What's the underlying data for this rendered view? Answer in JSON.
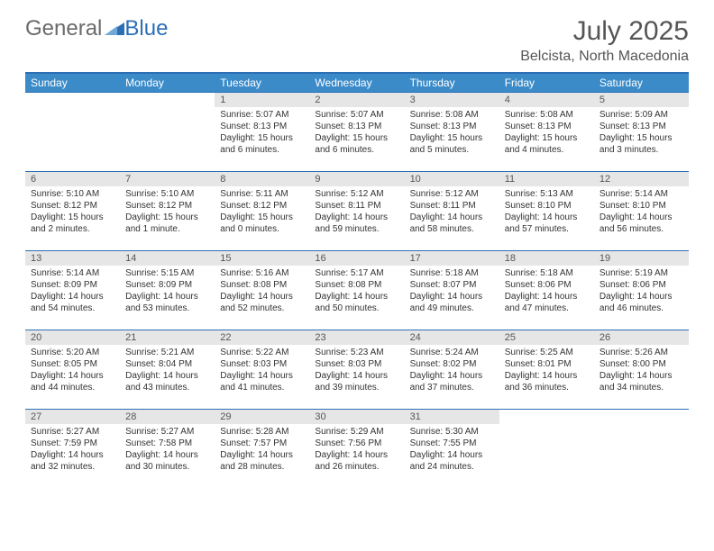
{
  "logo": {
    "part1": "General",
    "part2": "Blue"
  },
  "title": "July 2025",
  "location": "Belcista, North Macedonia",
  "colors": {
    "header_bg": "#3b8bc9",
    "header_border": "#2c6fb5",
    "daynum_bg": "#e6e6e6",
    "text": "#333333",
    "title_text": "#555555"
  },
  "typography": {
    "title_fontsize": 30,
    "location_fontsize": 16,
    "th_fontsize": 12,
    "cell_fontsize": 10
  },
  "weekdays": [
    "Sunday",
    "Monday",
    "Tuesday",
    "Wednesday",
    "Thursday",
    "Friday",
    "Saturday"
  ],
  "weeks": [
    [
      null,
      null,
      {
        "n": "1",
        "sr": "5:07 AM",
        "ss": "8:13 PM",
        "dl": "15 hours and 6 minutes."
      },
      {
        "n": "2",
        "sr": "5:07 AM",
        "ss": "8:13 PM",
        "dl": "15 hours and 6 minutes."
      },
      {
        "n": "3",
        "sr": "5:08 AM",
        "ss": "8:13 PM",
        "dl": "15 hours and 5 minutes."
      },
      {
        "n": "4",
        "sr": "5:08 AM",
        "ss": "8:13 PM",
        "dl": "15 hours and 4 minutes."
      },
      {
        "n": "5",
        "sr": "5:09 AM",
        "ss": "8:13 PM",
        "dl": "15 hours and 3 minutes."
      }
    ],
    [
      {
        "n": "6",
        "sr": "5:10 AM",
        "ss": "8:12 PM",
        "dl": "15 hours and 2 minutes."
      },
      {
        "n": "7",
        "sr": "5:10 AM",
        "ss": "8:12 PM",
        "dl": "15 hours and 1 minute."
      },
      {
        "n": "8",
        "sr": "5:11 AM",
        "ss": "8:12 PM",
        "dl": "15 hours and 0 minutes."
      },
      {
        "n": "9",
        "sr": "5:12 AM",
        "ss": "8:11 PM",
        "dl": "14 hours and 59 minutes."
      },
      {
        "n": "10",
        "sr": "5:12 AM",
        "ss": "8:11 PM",
        "dl": "14 hours and 58 minutes."
      },
      {
        "n": "11",
        "sr": "5:13 AM",
        "ss": "8:10 PM",
        "dl": "14 hours and 57 minutes."
      },
      {
        "n": "12",
        "sr": "5:14 AM",
        "ss": "8:10 PM",
        "dl": "14 hours and 56 minutes."
      }
    ],
    [
      {
        "n": "13",
        "sr": "5:14 AM",
        "ss": "8:09 PM",
        "dl": "14 hours and 54 minutes."
      },
      {
        "n": "14",
        "sr": "5:15 AM",
        "ss": "8:09 PM",
        "dl": "14 hours and 53 minutes."
      },
      {
        "n": "15",
        "sr": "5:16 AM",
        "ss": "8:08 PM",
        "dl": "14 hours and 52 minutes."
      },
      {
        "n": "16",
        "sr": "5:17 AM",
        "ss": "8:08 PM",
        "dl": "14 hours and 50 minutes."
      },
      {
        "n": "17",
        "sr": "5:18 AM",
        "ss": "8:07 PM",
        "dl": "14 hours and 49 minutes."
      },
      {
        "n": "18",
        "sr": "5:18 AM",
        "ss": "8:06 PM",
        "dl": "14 hours and 47 minutes."
      },
      {
        "n": "19",
        "sr": "5:19 AM",
        "ss": "8:06 PM",
        "dl": "14 hours and 46 minutes."
      }
    ],
    [
      {
        "n": "20",
        "sr": "5:20 AM",
        "ss": "8:05 PM",
        "dl": "14 hours and 44 minutes."
      },
      {
        "n": "21",
        "sr": "5:21 AM",
        "ss": "8:04 PM",
        "dl": "14 hours and 43 minutes."
      },
      {
        "n": "22",
        "sr": "5:22 AM",
        "ss": "8:03 PM",
        "dl": "14 hours and 41 minutes."
      },
      {
        "n": "23",
        "sr": "5:23 AM",
        "ss": "8:03 PM",
        "dl": "14 hours and 39 minutes."
      },
      {
        "n": "24",
        "sr": "5:24 AM",
        "ss": "8:02 PM",
        "dl": "14 hours and 37 minutes."
      },
      {
        "n": "25",
        "sr": "5:25 AM",
        "ss": "8:01 PM",
        "dl": "14 hours and 36 minutes."
      },
      {
        "n": "26",
        "sr": "5:26 AM",
        "ss": "8:00 PM",
        "dl": "14 hours and 34 minutes."
      }
    ],
    [
      {
        "n": "27",
        "sr": "5:27 AM",
        "ss": "7:59 PM",
        "dl": "14 hours and 32 minutes."
      },
      {
        "n": "28",
        "sr": "5:27 AM",
        "ss": "7:58 PM",
        "dl": "14 hours and 30 minutes."
      },
      {
        "n": "29",
        "sr": "5:28 AM",
        "ss": "7:57 PM",
        "dl": "14 hours and 28 minutes."
      },
      {
        "n": "30",
        "sr": "5:29 AM",
        "ss": "7:56 PM",
        "dl": "14 hours and 26 minutes."
      },
      {
        "n": "31",
        "sr": "5:30 AM",
        "ss": "7:55 PM",
        "dl": "14 hours and 24 minutes."
      },
      null,
      null
    ]
  ],
  "labels": {
    "sunrise": "Sunrise:",
    "sunset": "Sunset:",
    "daylight": "Daylight:"
  }
}
